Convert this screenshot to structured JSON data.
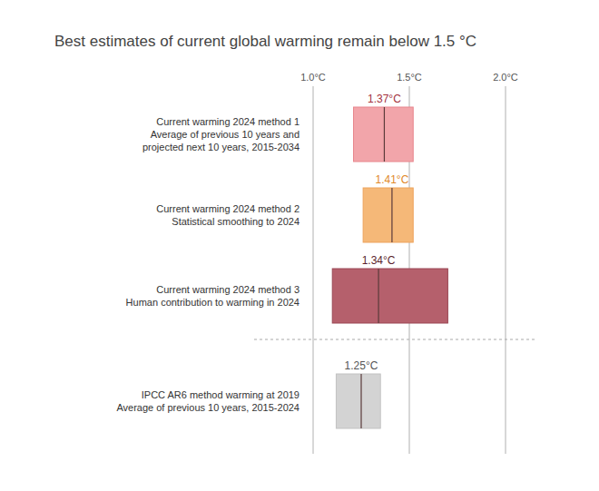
{
  "chart_data": {
    "type": "range",
    "orientation": "horizontal",
    "title": "Best estimates of current global warming remain below 1.5 °C",
    "categories": [
      "Current warming 2024 method 1\nAverage of previous 10 years and\nprojected next 10 years, 2015-2034",
      "Current warming 2024 method 2\nStatistical smoothing to 2024",
      "Current warming 2024 method 3\nHuman contribution to warming in 2024",
      "IPCC AR6 method warming at 2019\nAverage of previous 10 years, 2015-2024"
    ],
    "values": [
      1.37,
      1.41,
      1.34,
      1.25
    ],
    "value_labels": [
      "1.37°C",
      "1.41°C",
      "1.34°C",
      "1.25°C"
    ],
    "low": [
      1.21,
      1.26,
      1.1,
      1.12
    ],
    "high": [
      1.52,
      1.52,
      1.7,
      1.35
    ],
    "colors": [
      "#f2a5aa",
      "#f5b878",
      "#b5606c",
      "#d3d3d3"
    ],
    "xlim": [
      1.0,
      2.0
    ],
    "xticks": [
      {
        "value": 1.0,
        "label": "1.0°C"
      },
      {
        "value": 1.5,
        "label": "1.5°C"
      },
      {
        "value": 2.0,
        "label": "2.0°C"
      }
    ],
    "grid": true,
    "data_labels": true
  }
}
